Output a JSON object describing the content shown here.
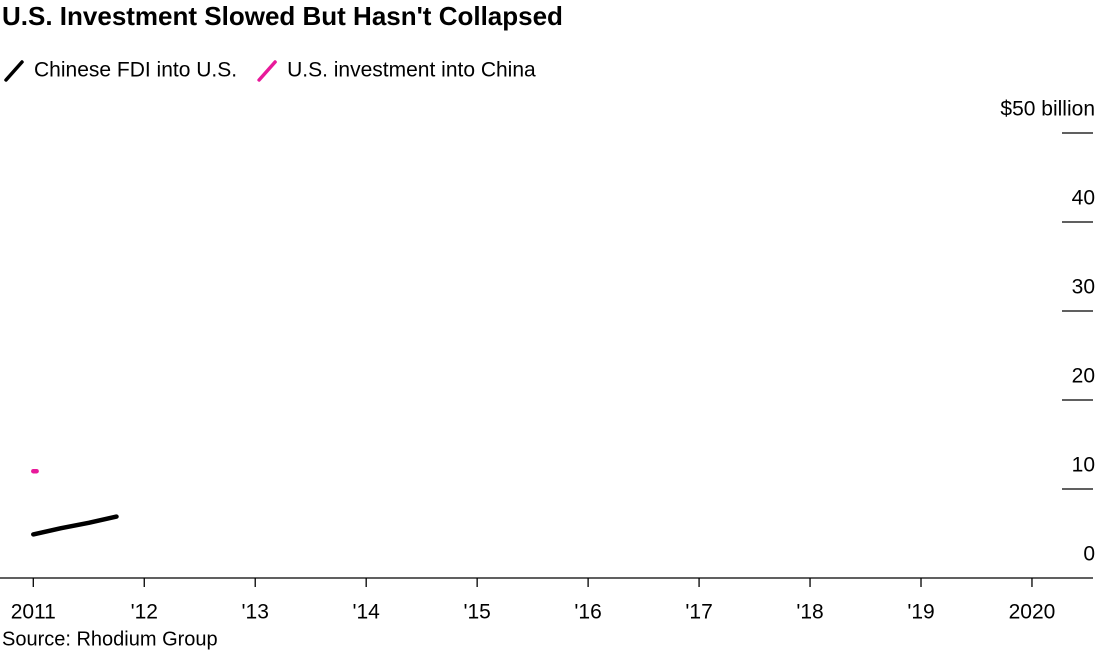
{
  "chart_data": {
    "type": "line",
    "title": "U.S. Investment Slowed But Hasn't Collapsed",
    "source": "Source: Rhodium Group",
    "series": [
      {
        "name": "Chinese FDI into U.S.",
        "color": "#000000",
        "x": [
          2011,
          2011.25,
          2011.5,
          2011.75
        ],
        "values": [
          4.9,
          5.6,
          6.2,
          6.9
        ]
      },
      {
        "name": "U.S. investment into China",
        "color": "#e8199a",
        "x": [
          2011,
          2011.03
        ],
        "values": [
          12.0,
          12.0
        ]
      }
    ],
    "xlim": [
      2010.7,
      2020.55
    ],
    "xticks": [
      2011,
      {
        "value": 2012,
        "label": "'12"
      },
      {
        "value": 2013,
        "label": "'13"
      },
      {
        "value": 2014,
        "label": "'14"
      },
      {
        "value": 2015,
        "label": "'15"
      },
      {
        "value": 2016,
        "label": "'16"
      },
      {
        "value": 2017,
        "label": "'17"
      },
      {
        "value": 2018,
        "label": "'18"
      },
      {
        "value": 2019,
        "label": "'19"
      },
      2020
    ],
    "ylim": [
      0,
      50
    ],
    "yticks": [
      0,
      10,
      20,
      30,
      40,
      {
        "value": 50,
        "label": "$50 billion"
      }
    ]
  }
}
